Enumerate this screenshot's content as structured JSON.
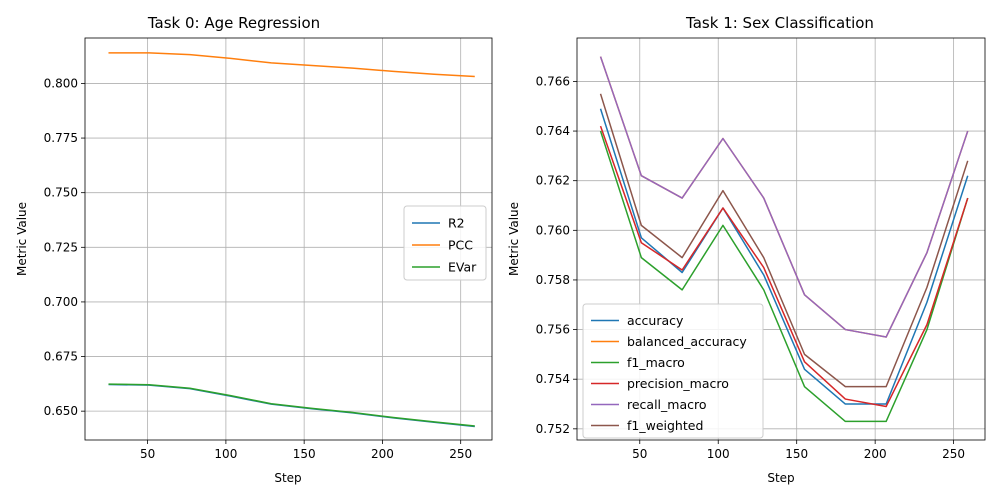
{
  "chart_data": [
    {
      "type": "line",
      "title": "Task 0: Age Regression",
      "xlabel": "Step",
      "ylabel": "Metric Value",
      "xlim": [
        10,
        270
      ],
      "ylim": [
        0.6368,
        0.8208
      ],
      "xticks": [
        50,
        100,
        150,
        200,
        250
      ],
      "yticks": [
        0.65,
        0.675,
        0.7,
        0.725,
        0.75,
        0.775,
        0.8
      ],
      "ytick_decimals": 3,
      "grid": true,
      "legend_position": "center-right",
      "x": [
        25,
        51,
        77,
        103,
        129,
        155,
        181,
        207,
        233,
        259
      ],
      "series": [
        {
          "name": "R2",
          "color": "#1f77b4",
          "values": [
            0.6622,
            0.6619,
            0.6603,
            0.6569,
            0.6532,
            0.6511,
            0.6492,
            0.6469,
            0.6449,
            0.643
          ]
        },
        {
          "name": "PCC",
          "color": "#ff7f0e",
          "values": [
            0.814,
            0.814,
            0.8132,
            0.8115,
            0.8094,
            0.8082,
            0.807,
            0.8055,
            0.8042,
            0.8032
          ]
        },
        {
          "name": "EVar",
          "color": "#2ca02c",
          "values": [
            0.6624,
            0.6621,
            0.6605,
            0.6571,
            0.6534,
            0.6513,
            0.6494,
            0.6471,
            0.6451,
            0.6432
          ]
        }
      ]
    },
    {
      "type": "line",
      "title": "Task 1: Sex Classification",
      "xlabel": "Step",
      "ylabel": "Metric Value",
      "xlim": [
        10,
        270
      ],
      "ylim": [
        0.75155,
        0.76775
      ],
      "xticks": [
        50,
        100,
        150,
        200,
        250
      ],
      "yticks": [
        0.752,
        0.754,
        0.756,
        0.758,
        0.76,
        0.762,
        0.764,
        0.766
      ],
      "ytick_decimals": 3,
      "grid": true,
      "legend_position": "lower-left",
      "x": [
        25,
        51,
        77,
        103,
        129,
        155,
        181,
        207,
        233,
        259
      ],
      "series": [
        {
          "name": "accuracy",
          "color": "#1f77b4",
          "values": [
            0.7649,
            0.7597,
            0.7583,
            0.7609,
            0.7582,
            0.7544,
            0.753,
            0.753,
            0.7571,
            0.7622
          ]
        },
        {
          "name": "balanced_accuracy",
          "color": "#ff7f0e",
          "values": [
            0.767,
            0.7622,
            0.7613,
            0.7637,
            0.7613,
            0.7574,
            0.756,
            0.7557,
            0.7591,
            0.764
          ]
        },
        {
          "name": "f1_macro",
          "color": "#2ca02c",
          "values": [
            0.764,
            0.7589,
            0.7576,
            0.7602,
            0.7576,
            0.7537,
            0.7523,
            0.7523,
            0.756,
            0.7613
          ]
        },
        {
          "name": "precision_macro",
          "color": "#d62728",
          "values": [
            0.7642,
            0.7595,
            0.7584,
            0.7609,
            0.7585,
            0.7547,
            0.7532,
            0.7529,
            0.7562,
            0.7613
          ]
        },
        {
          "name": "recall_macro",
          "color": "#9467bd",
          "values": [
            0.767,
            0.7622,
            0.7613,
            0.7637,
            0.7613,
            0.7574,
            0.756,
            0.7557,
            0.7591,
            0.764
          ]
        },
        {
          "name": "f1_weighted",
          "color": "#8c564b",
          "values": [
            0.7655,
            0.7602,
            0.7589,
            0.7616,
            0.7589,
            0.755,
            0.7537,
            0.7537,
            0.7577,
            0.7628
          ]
        }
      ]
    }
  ]
}
